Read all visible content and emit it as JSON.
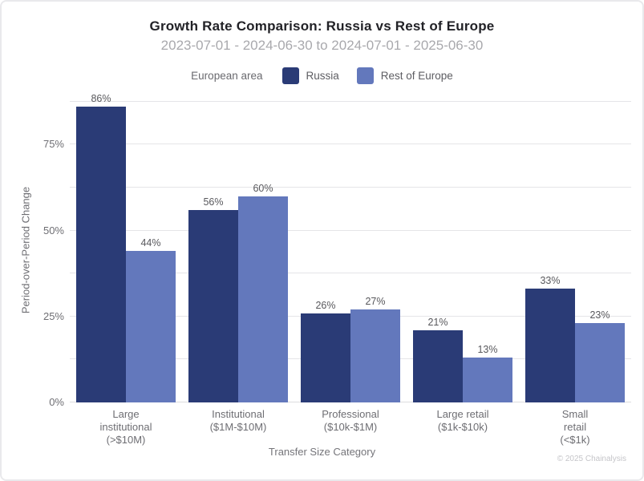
{
  "legend": {
    "label": "European area"
  },
  "footer": {
    "copyright": "© 2025 Chainalysis"
  },
  "chart_data": {
    "type": "bar",
    "title": "Growth Rate Comparison: Russia vs Rest of Europe",
    "subtitle": "2023-07-01 - 2024-06-30 to 2024-07-01 - 2025-06-30",
    "categories": [
      "Large institutional (>$10M)",
      "Institutional ($1M-$10M)",
      "Professional ($10k-$1M)",
      "Large retail ($1k-$10k)",
      "Small retail (<$1k)"
    ],
    "category_lines": [
      [
        "Large",
        "institutional",
        "(>$10M)"
      ],
      [
        "Institutional",
        "($1M-$10M)"
      ],
      [
        "Professional",
        "($10k-$1M)"
      ],
      [
        "Large retail",
        "($1k-$10k)"
      ],
      [
        "Small",
        "retail",
        "(<$1k)"
      ]
    ],
    "series": [
      {
        "name": "Russia",
        "color": "#2A3B76",
        "values": [
          86,
          56,
          26,
          21,
          33
        ]
      },
      {
        "name": "Rest of Europe",
        "color": "#6378BC",
        "values": [
          44,
          60,
          27,
          13,
          23
        ]
      }
    ],
    "xlabel": "Transfer Size Category",
    "ylabel": "Period-over-Period Change",
    "yticks": [
      0,
      25,
      50,
      75
    ],
    "ytick_suffix": "%",
    "value_suffix": "%",
    "ylim": [
      0,
      90
    ],
    "grid_step": 12.5,
    "grid": true,
    "legend_position": "top"
  }
}
